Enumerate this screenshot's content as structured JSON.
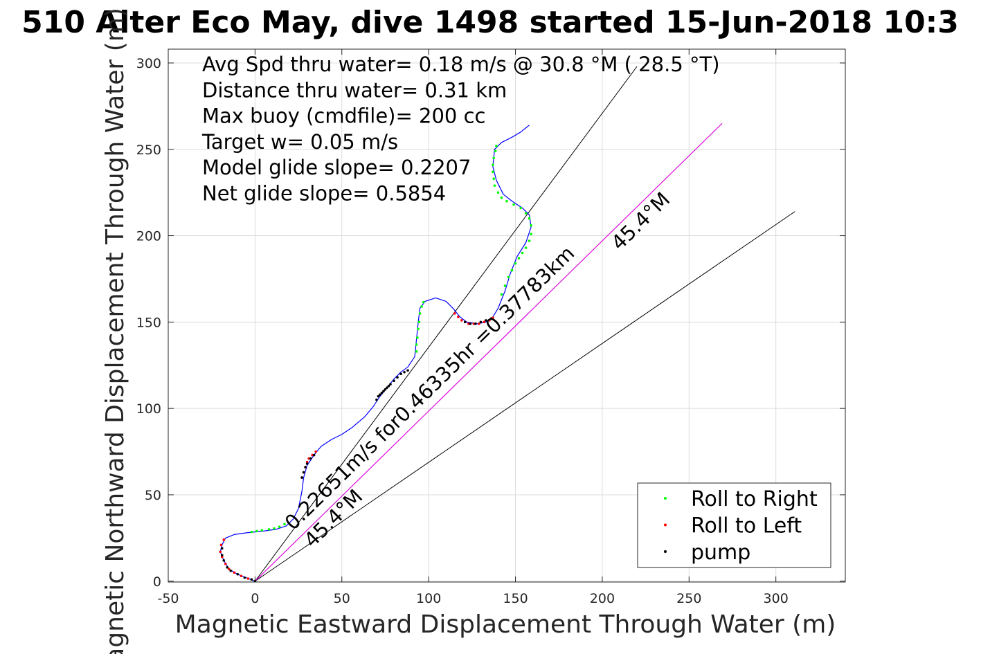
{
  "chart_data": {
    "type": "line",
    "title": "510 Alter Eco May, dive 1498 started 15-Jun-2018 10:3",
    "xlabel": "Magnetic Eastward Displacement Through Water (m)",
    "ylabel": "Magnetic Northward Displacement Through Water (m)",
    "xlim": [
      -50,
      340
    ],
    "ylim": [
      -0.5,
      308
    ],
    "xticks": [
      -50,
      0,
      50,
      100,
      150,
      200,
      250,
      300
    ],
    "yticks": [
      0,
      50,
      100,
      150,
      200,
      250,
      300
    ],
    "xtick_labels": [
      "-50",
      "0",
      "50",
      "100",
      "150",
      "200",
      "250",
      "300"
    ],
    "ytick_labels": [
      "0",
      "50",
      "100",
      "150",
      "200",
      "250",
      "300"
    ],
    "grid": true,
    "legend_position": "bottom-right",
    "annotations": [
      "Avg Spd thru water=  0.18 m/s @  30.8 °M ( 28.5 °T)",
      "Distance thru water=  0.31 km",
      "Max buoy (cmdfile)= 200 cc",
      "Target w= 0.05 m/s",
      "Model glide slope= 0.2207",
      "Net glide slope= 0.5854"
    ],
    "line_labels": {
      "current_speed": "0.22651m/s for0.46335hr =0.37783km",
      "current_heading": "45.4°M",
      "lower_bound_heading": "45.4°M"
    },
    "series": [
      {
        "name": "",
        "kind": "track",
        "color": "#0000ff",
        "points": [
          [
            0,
            0
          ],
          [
            -5,
            2
          ],
          [
            -10,
            4
          ],
          [
            -15,
            7
          ],
          [
            -18,
            12
          ],
          [
            -20,
            17
          ],
          [
            -19,
            21
          ],
          [
            -17,
            25
          ],
          [
            -12,
            27
          ],
          [
            -5,
            28
          ],
          [
            5,
            29
          ],
          [
            12,
            30
          ],
          [
            18,
            32
          ],
          [
            22,
            36
          ],
          [
            25,
            42
          ],
          [
            27,
            52
          ],
          [
            28,
            60
          ],
          [
            30,
            67
          ],
          [
            34,
            73
          ],
          [
            38,
            78
          ],
          [
            44,
            82
          ],
          [
            50,
            85
          ],
          [
            56,
            89
          ],
          [
            63,
            95
          ],
          [
            68,
            101
          ],
          [
            72,
            107
          ],
          [
            76,
            112
          ],
          [
            80,
            117
          ],
          [
            84,
            121
          ],
          [
            88,
            124
          ],
          [
            92,
            130
          ],
          [
            93,
            140
          ],
          [
            94,
            150
          ],
          [
            95,
            158
          ],
          [
            98,
            162
          ],
          [
            104,
            164
          ],
          [
            110,
            162
          ],
          [
            114,
            158
          ],
          [
            118,
            153
          ],
          [
            122,
            150
          ],
          [
            128,
            149
          ],
          [
            133,
            150
          ],
          [
            137,
            153
          ],
          [
            140,
            158
          ],
          [
            144,
            168
          ],
          [
            147,
            178
          ],
          [
            151,
            188
          ],
          [
            156,
            196
          ],
          [
            159,
            205
          ],
          [
            158,
            212
          ],
          [
            154,
            216
          ],
          [
            148,
            220
          ],
          [
            143,
            224
          ],
          [
            139,
            232
          ],
          [
            137,
            240
          ],
          [
            138,
            250
          ],
          [
            142,
            254
          ],
          [
            148,
            257
          ],
          [
            153,
            260
          ],
          [
            158,
            264
          ]
        ]
      },
      {
        "name": "Roll to Right",
        "kind": "markers",
        "color": "#00ff00",
        "points": [
          [
            0,
            0
          ],
          [
            -2,
            28.5
          ],
          [
            1,
            29
          ],
          [
            4,
            29.5
          ],
          [
            8,
            30
          ],
          [
            11,
            30.5
          ],
          [
            14,
            31.5
          ],
          [
            17,
            33
          ],
          [
            93,
            133
          ],
          [
            93,
            137
          ],
          [
            93.5,
            141
          ],
          [
            94,
            146
          ],
          [
            94.5,
            150
          ],
          [
            95,
            155
          ],
          [
            96,
            159
          ],
          [
            97,
            161.5
          ],
          [
            142,
            166
          ],
          [
            144,
            171
          ],
          [
            146,
            176
          ],
          [
            148,
            180
          ],
          [
            150,
            184
          ],
          [
            152,
            187
          ],
          [
            154,
            190
          ],
          [
            156,
            193
          ],
          [
            158,
            197
          ],
          [
            159,
            201
          ],
          [
            159,
            206
          ],
          [
            158,
            210
          ],
          [
            156,
            213
          ],
          [
            153,
            216
          ],
          [
            149,
            218
          ],
          [
            145,
            220
          ],
          [
            142,
            222
          ],
          [
            140,
            225
          ],
          [
            138,
            229
          ],
          [
            137.5,
            233
          ],
          [
            137,
            237
          ],
          [
            137,
            241
          ],
          [
            137.5,
            245
          ],
          [
            138.5,
            249
          ],
          [
            139,
            252
          ]
        ]
      },
      {
        "name": "Roll to Left",
        "kind": "markers",
        "color": "#ff0000",
        "points": [
          [
            -4,
            1.5
          ],
          [
            -8,
            3
          ],
          [
            -12,
            5
          ],
          [
            -15,
            7
          ],
          [
            -17,
            10
          ],
          [
            -19,
            14
          ],
          [
            -20,
            17
          ],
          [
            -19.5,
            21
          ],
          [
            -18,
            24
          ],
          [
            27,
            60
          ],
          [
            28,
            63
          ],
          [
            29,
            66
          ],
          [
            30,
            69
          ],
          [
            31,
            71
          ],
          [
            33,
            73
          ],
          [
            35,
            75
          ],
          [
            115,
            155
          ],
          [
            117,
            153
          ],
          [
            119,
            151
          ],
          [
            121,
            150
          ],
          [
            123,
            149
          ],
          [
            126,
            149
          ],
          [
            129,
            149
          ],
          [
            132,
            150
          ],
          [
            135,
            151
          ],
          [
            137,
            152.5
          ]
        ]
      },
      {
        "name": "pump",
        "kind": "markers",
        "color": "#000000",
        "points": [
          [
            0,
            0
          ],
          [
            -2,
            1
          ],
          [
            -6,
            2
          ],
          [
            -10,
            4
          ],
          [
            -14,
            6
          ],
          [
            -16,
            8
          ],
          [
            -18,
            12
          ],
          [
            -19,
            15
          ],
          [
            -19,
            19
          ],
          [
            27,
            60
          ],
          [
            28,
            63
          ],
          [
            29,
            66
          ],
          [
            30,
            68
          ],
          [
            32,
            71
          ],
          [
            34,
            73
          ],
          [
            70,
            105
          ],
          [
            71,
            107
          ],
          [
            72,
            108
          ],
          [
            73,
            109
          ],
          [
            74,
            110
          ],
          [
            75,
            111
          ],
          [
            76,
            112
          ],
          [
            77,
            113
          ],
          [
            78,
            114
          ],
          [
            80,
            116
          ],
          [
            82,
            118
          ],
          [
            84,
            120
          ],
          [
            86,
            121
          ],
          [
            88,
            122
          ],
          [
            121,
            150
          ],
          [
            124,
            149
          ],
          [
            127,
            149
          ],
          [
            130,
            150
          ],
          [
            133,
            151
          ],
          [
            136,
            152
          ]
        ]
      },
      {
        "name": "",
        "kind": "line",
        "color": "#000000",
        "points": [
          [
            0,
            0
          ],
          [
            220,
            298
          ]
        ]
      },
      {
        "name": "",
        "kind": "line",
        "color": "#000000",
        "points": [
          [
            0,
            0
          ],
          [
            311,
            214
          ]
        ]
      },
      {
        "name": "",
        "kind": "line",
        "color": "#000000",
        "points": [
          [
            0,
            0
          ],
          [
            269,
            265
          ]
        ]
      },
      {
        "name": "",
        "kind": "line",
        "color": "#ff00ff",
        "points": [
          [
            0,
            0
          ],
          [
            269,
            265
          ]
        ]
      }
    ],
    "legend": [
      {
        "label": "Roll to Right",
        "color": "#00ff00"
      },
      {
        "label": "Roll to Left",
        "color": "#ff0000"
      },
      {
        "label": "pump",
        "color": "#000000"
      }
    ]
  }
}
